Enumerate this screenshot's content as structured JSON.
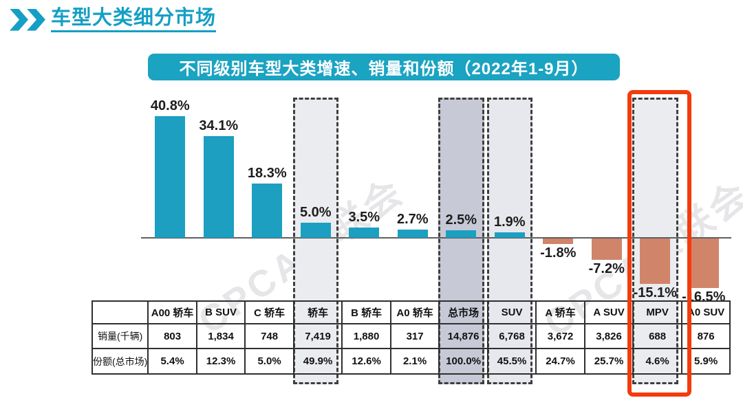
{
  "page": {
    "title": "车型大类细分市场"
  },
  "banner": {
    "title": "不同级别车型大类增速、销量和份额（2022年1-9月）"
  },
  "watermark": {
    "text": "CPCA乘联会"
  },
  "colors": {
    "accent_teal": "#149fc4",
    "banner_bg": "#1ba3c2",
    "bar_positive": "#1c9fc0",
    "bar_negative": "#d0856a",
    "red_box": "#f43b0c",
    "dash_border": "#3e3e3e"
  },
  "chart_data": {
    "type": "bar",
    "title": "不同级别车型大类增速、销量和份额（2022年1-9月）",
    "period": "2022年1-9月",
    "categories": [
      "A00 轿车",
      "B SUV",
      "C 轿车",
      "轿车",
      "B 轿车",
      "A0 轿车",
      "总市场",
      "SUV",
      "A 轿车",
      "A SUV",
      "MPV",
      "A0 SUV"
    ],
    "series": [
      {
        "name": "增速",
        "unit": "%",
        "values": [
          40.8,
          34.1,
          18.3,
          5.0,
          3.5,
          2.7,
          2.5,
          1.9,
          -1.8,
          -7.2,
          -15.1,
          -16.5
        ],
        "labels": [
          "40.8%",
          "34.1%",
          "18.3%",
          "5.0%",
          "3.5%",
          "2.7%",
          "2.5%",
          "1.9%",
          "-1.8%",
          "-7.2%",
          "-15.1%",
          "-16.5%"
        ]
      }
    ],
    "ylim": [
      -20,
      45
    ],
    "grid": false,
    "legend": "none",
    "table": {
      "row_labels": [
        "销量(千辆)",
        "份额(总市场)"
      ],
      "rows": [
        [
          "803",
          "1,834",
          "748",
          "7,419",
          "1,880",
          "317",
          "14,876",
          "6,768",
          "3,672",
          "3,826",
          "688",
          "876"
        ],
        [
          "5.4%",
          "12.3%",
          "5.0%",
          "49.9%",
          "12.6%",
          "2.1%",
          "100.0%",
          "45.5%",
          "24.7%",
          "25.7%",
          "4.6%",
          "5.9%"
        ]
      ]
    },
    "highlights": {
      "dashed": [
        {
          "category": "轿车",
          "fill": "#ebecf0"
        },
        {
          "category": "总市场",
          "fill": "#c7c9d6"
        },
        {
          "category": "SUV",
          "fill": "#e7e8ee"
        },
        {
          "category": "MPV",
          "fill": "#ebecf0"
        }
      ],
      "red_box": {
        "category": "MPV"
      }
    }
  }
}
